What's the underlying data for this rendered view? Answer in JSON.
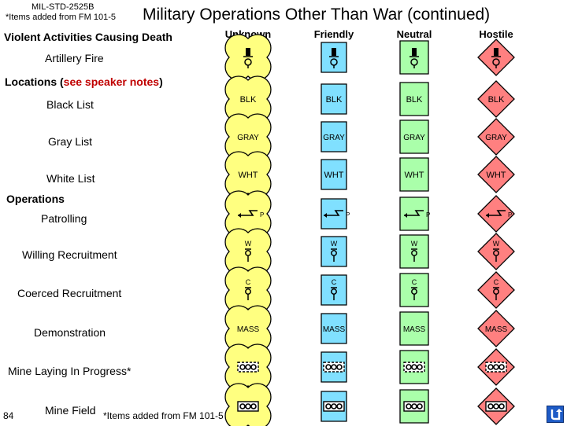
{
  "header": {
    "standard": "MIL-STD-2525B",
    "note": "*Items added from FM 101-5",
    "title": "Military Operations Other Than War (continued)"
  },
  "columns": [
    "Unknown",
    "Friendly",
    "Neutral",
    "Hostile"
  ],
  "affiliation_colors": {
    "unknown": "#ffff80",
    "friendly": "#80e0ff",
    "neutral": "#aaffaa",
    "hostile": "#ff8080"
  },
  "sections": {
    "violent": "Violent Activities Causing Death",
    "locations_prefix": "Locations (",
    "locations_link": "see speaker notes",
    "locations_suffix": ")",
    "operations": "Operations"
  },
  "rows": {
    "artillery": {
      "label": "Artillery Fire"
    },
    "black_list": {
      "label": "Black List",
      "symbol_text": "BLK"
    },
    "gray_list": {
      "label": "Gray List",
      "symbol_text": "GRAY"
    },
    "white_list": {
      "label": "White List",
      "symbol_text": "WHT"
    },
    "patrolling": {
      "label": "Patrolling",
      "symbol_text": "P"
    },
    "willing": {
      "label": "Willing Recruitment",
      "symbol_text": "W"
    },
    "coerced": {
      "label": "Coerced Recruitment",
      "symbol_text": "C"
    },
    "demonstration": {
      "label": "Demonstration",
      "symbol_text": "MASS"
    },
    "mine_laying": {
      "label": "Mine Laying In Progress*"
    },
    "mine_field": {
      "label": "Mine Field"
    }
  },
  "footer": {
    "page_number": "84",
    "note": "*Items added from FM 101-5",
    "nav_icon": "return-arrow-icon"
  }
}
